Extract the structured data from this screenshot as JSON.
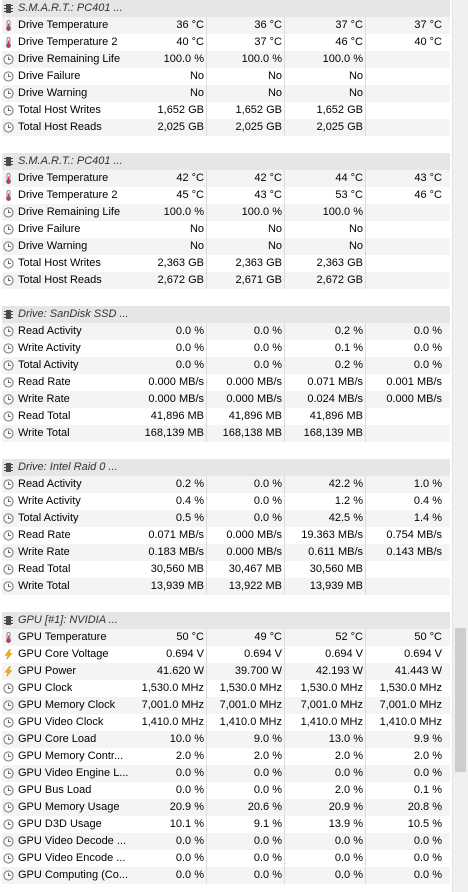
{
  "icons": {
    "chip": "chip-icon",
    "temperature": "thermometer-icon",
    "clock": "clock-icon",
    "voltage": "lightning-icon"
  },
  "sections": [
    {
      "title": "S.M.A.R.T.: PC401 ...",
      "rows": [
        {
          "icon": "temperature",
          "label": "Drive Temperature",
          "values": [
            "36 °C",
            "36 °C",
            "37 °C",
            "37 °C"
          ]
        },
        {
          "icon": "temperature",
          "label": "Drive Temperature 2",
          "values": [
            "40 °C",
            "37 °C",
            "46 °C",
            "40 °C"
          ]
        },
        {
          "icon": "clock",
          "label": "Drive Remaining Life",
          "values": [
            "100.0 %",
            "100.0 %",
            "100.0 %",
            ""
          ]
        },
        {
          "icon": "clock",
          "label": "Drive Failure",
          "values": [
            "No",
            "No",
            "No",
            ""
          ]
        },
        {
          "icon": "clock",
          "label": "Drive Warning",
          "values": [
            "No",
            "No",
            "No",
            ""
          ]
        },
        {
          "icon": "clock",
          "label": "Total Host Writes",
          "values": [
            "1,652 GB",
            "1,652 GB",
            "1,652 GB",
            ""
          ]
        },
        {
          "icon": "clock",
          "label": "Total Host Reads",
          "values": [
            "2,025 GB",
            "2,025 GB",
            "2,025 GB",
            ""
          ]
        }
      ]
    },
    {
      "title": "S.M.A.R.T.: PC401 ...",
      "rows": [
        {
          "icon": "temperature",
          "label": "Drive Temperature",
          "values": [
            "42 °C",
            "42 °C",
            "44 °C",
            "43 °C"
          ]
        },
        {
          "icon": "temperature",
          "label": "Drive Temperature 2",
          "values": [
            "45 °C",
            "43 °C",
            "53 °C",
            "46 °C"
          ]
        },
        {
          "icon": "clock",
          "label": "Drive Remaining Life",
          "values": [
            "100.0 %",
            "100.0 %",
            "100.0 %",
            ""
          ]
        },
        {
          "icon": "clock",
          "label": "Drive Failure",
          "values": [
            "No",
            "No",
            "No",
            ""
          ]
        },
        {
          "icon": "clock",
          "label": "Drive Warning",
          "values": [
            "No",
            "No",
            "No",
            ""
          ]
        },
        {
          "icon": "clock",
          "label": "Total Host Writes",
          "values": [
            "2,363 GB",
            "2,363 GB",
            "2,363 GB",
            ""
          ]
        },
        {
          "icon": "clock",
          "label": "Total Host Reads",
          "values": [
            "2,672 GB",
            "2,671 GB",
            "2,672 GB",
            ""
          ]
        }
      ]
    },
    {
      "title": "Drive: SanDisk SSD ...",
      "rows": [
        {
          "icon": "clock",
          "label": "Read Activity",
          "values": [
            "0.0 %",
            "0.0 %",
            "0.2 %",
            "0.0 %"
          ]
        },
        {
          "icon": "clock",
          "label": "Write Activity",
          "values": [
            "0.0 %",
            "0.0 %",
            "0.1 %",
            "0.0 %"
          ]
        },
        {
          "icon": "clock",
          "label": "Total Activity",
          "values": [
            "0.0 %",
            "0.0 %",
            "0.2 %",
            "0.0 %"
          ]
        },
        {
          "icon": "clock",
          "label": "Read Rate",
          "values": [
            "0.000 MB/s",
            "0.000 MB/s",
            "0.071 MB/s",
            "0.001 MB/s"
          ]
        },
        {
          "icon": "clock",
          "label": "Write Rate",
          "values": [
            "0.000 MB/s",
            "0.000 MB/s",
            "0.024 MB/s",
            "0.000 MB/s"
          ]
        },
        {
          "icon": "clock",
          "label": "Read Total",
          "values": [
            "41,896 MB",
            "41,896 MB",
            "41,896 MB",
            ""
          ]
        },
        {
          "icon": "clock",
          "label": "Write Total",
          "values": [
            "168,139 MB",
            "168,138 MB",
            "168,139 MB",
            ""
          ]
        }
      ]
    },
    {
      "title": "Drive: Intel Raid 0 ...",
      "rows": [
        {
          "icon": "clock",
          "label": "Read Activity",
          "values": [
            "0.2 %",
            "0.0 %",
            "42.2 %",
            "1.0 %"
          ]
        },
        {
          "icon": "clock",
          "label": "Write Activity",
          "values": [
            "0.4 %",
            "0.0 %",
            "1.2 %",
            "0.4 %"
          ]
        },
        {
          "icon": "clock",
          "label": "Total Activity",
          "values": [
            "0.5 %",
            "0.0 %",
            "42.5 %",
            "1.4 %"
          ]
        },
        {
          "icon": "clock",
          "label": "Read Rate",
          "values": [
            "0.071 MB/s",
            "0.000 MB/s",
            "19.363 MB/s",
            "0.754 MB/s"
          ]
        },
        {
          "icon": "clock",
          "label": "Write Rate",
          "values": [
            "0.183 MB/s",
            "0.000 MB/s",
            "0.611 MB/s",
            "0.143 MB/s"
          ]
        },
        {
          "icon": "clock",
          "label": "Read Total",
          "values": [
            "30,560 MB",
            "30,467 MB",
            "30,560 MB",
            ""
          ]
        },
        {
          "icon": "clock",
          "label": "Write Total",
          "values": [
            "13,939 MB",
            "13,922 MB",
            "13,939 MB",
            ""
          ]
        }
      ]
    },
    {
      "title": "GPU [#1]: NVIDIA ...",
      "rows": [
        {
          "icon": "temperature",
          "label": "GPU Temperature",
          "values": [
            "50 °C",
            "49 °C",
            "52 °C",
            "50 °C"
          ]
        },
        {
          "icon": "voltage",
          "label": "GPU Core Voltage",
          "values": [
            "0.694 V",
            "0.694 V",
            "0.694 V",
            "0.694 V"
          ]
        },
        {
          "icon": "voltage",
          "label": "GPU Power",
          "values": [
            "41.620 W",
            "39.700 W",
            "42.193 W",
            "41.443 W"
          ]
        },
        {
          "icon": "clock",
          "label": "GPU Clock",
          "values": [
            "1,530.0 MHz",
            "1,530.0 MHz",
            "1,530.0 MHz",
            "1,530.0 MHz"
          ]
        },
        {
          "icon": "clock",
          "label": "GPU Memory Clock",
          "values": [
            "7,001.0 MHz",
            "7,001.0 MHz",
            "7,001.0 MHz",
            "7,001.0 MHz"
          ]
        },
        {
          "icon": "clock",
          "label": "GPU Video Clock",
          "values": [
            "1,410.0 MHz",
            "1,410.0 MHz",
            "1,410.0 MHz",
            "1,410.0 MHz"
          ]
        },
        {
          "icon": "clock",
          "label": "GPU Core Load",
          "values": [
            "10.0 %",
            "9.0 %",
            "13.0 %",
            "9.9 %"
          ]
        },
        {
          "icon": "clock",
          "label": "GPU Memory Contr...",
          "values": [
            "2.0 %",
            "2.0 %",
            "2.0 %",
            "2.0 %"
          ]
        },
        {
          "icon": "clock",
          "label": "GPU Video Engine L...",
          "values": [
            "0.0 %",
            "0.0 %",
            "0.0 %",
            "0.0 %"
          ]
        },
        {
          "icon": "clock",
          "label": "GPU Bus Load",
          "values": [
            "0.0 %",
            "0.0 %",
            "2.0 %",
            "0.1 %"
          ]
        },
        {
          "icon": "clock",
          "label": "GPU Memory Usage",
          "values": [
            "20.9 %",
            "20.6 %",
            "20.9 %",
            "20.8 %"
          ]
        },
        {
          "icon": "clock",
          "label": "GPU D3D Usage",
          "values": [
            "10.1 %",
            "9.1 %",
            "13.9 %",
            "10.5 %"
          ]
        },
        {
          "icon": "clock",
          "label": "GPU Video Decode ...",
          "values": [
            "0.0 %",
            "0.0 %",
            "0.0 %",
            "0.0 %"
          ]
        },
        {
          "icon": "clock",
          "label": "GPU Video Encode ...",
          "values": [
            "0.0 %",
            "0.0 %",
            "0.0 %",
            "0.0 %"
          ]
        },
        {
          "icon": "clock",
          "label": "GPU Computing (Co...",
          "values": [
            "0.0 %",
            "0.0 %",
            "0.0 %",
            "0.0 %"
          ]
        }
      ]
    }
  ]
}
